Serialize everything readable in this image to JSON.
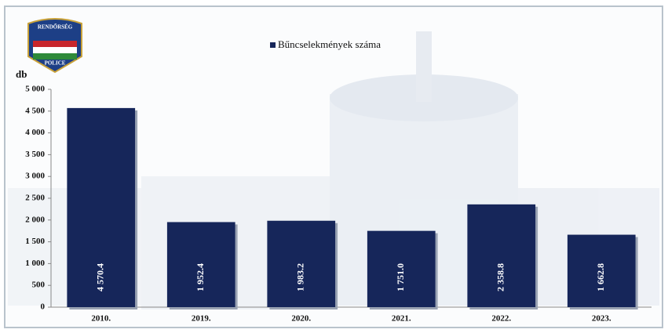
{
  "logo": {
    "top": "RENDŐRSÉG",
    "bottom": "POLICE"
  },
  "chart_data": {
    "type": "bar",
    "y_label": "db",
    "categories": [
      "2010.",
      "2019.",
      "2020.",
      "2021.",
      "2022.",
      "2023."
    ],
    "series": [
      {
        "name": "Bűncselekmények száma",
        "color": "#16265a",
        "values": [
          4570.4,
          1952.4,
          1983.2,
          1751.0,
          2358.8,
          1662.8
        ],
        "value_labels": [
          "4 570.4",
          "1 952.4",
          "1 983.2",
          "1 751.0",
          "2 358.8",
          "1 662.8"
        ]
      }
    ],
    "ylim": [
      0,
      5000
    ],
    "yticks": [
      0,
      500,
      {
        "value": 1000,
        "label": "1 000"
      },
      {
        "value": 1500,
        "label": "1 500"
      },
      {
        "value": 2000,
        "label": "2 000"
      },
      {
        "value": 2500,
        "label": "2 500"
      },
      {
        "value": 3000,
        "label": "3 000"
      },
      {
        "value": 3500,
        "label": "3 500"
      },
      {
        "value": 4000,
        "label": "4 000"
      },
      {
        "value": 4500,
        "label": "4 500"
      },
      {
        "value": 5000,
        "label": "5 000"
      }
    ],
    "legend": "top"
  }
}
